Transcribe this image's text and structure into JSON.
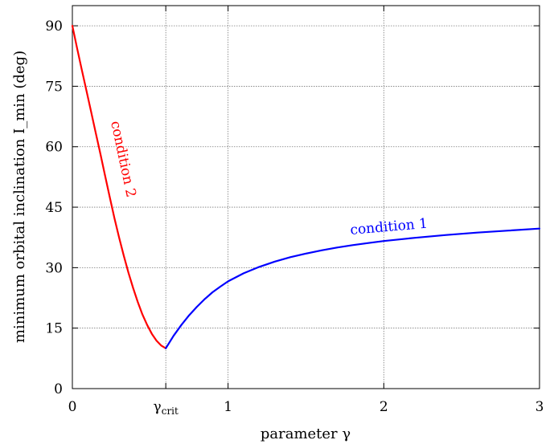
{
  "chart_data": {
    "type": "line",
    "xlabel": "parameter γ",
    "ylabel": "minimum orbital inclination I_min (deg)",
    "xlim": [
      0,
      3
    ],
    "ylim": [
      0,
      95
    ],
    "grid": true,
    "x_ticks": [
      {
        "value": 0,
        "label": "0"
      },
      {
        "value": 0.6,
        "label": "γcrit"
      },
      {
        "value": 1,
        "label": "1"
      },
      {
        "value": 2,
        "label": "2"
      },
      {
        "value": 3,
        "label": "3"
      }
    ],
    "y_ticks": [
      0,
      15,
      30,
      45,
      60,
      75,
      90
    ],
    "series": [
      {
        "name": "condition 2",
        "color": "#ff0000",
        "points": [
          [
            0.0,
            90.0
          ],
          [
            0.03,
            84.5
          ],
          [
            0.06,
            79.2
          ],
          [
            0.09,
            74.0
          ],
          [
            0.12,
            68.8
          ],
          [
            0.15,
            63.5
          ],
          [
            0.18,
            58.2
          ],
          [
            0.21,
            52.8
          ],
          [
            0.24,
            47.5
          ],
          [
            0.27,
            42.3
          ],
          [
            0.3,
            37.5
          ],
          [
            0.33,
            33.0
          ],
          [
            0.36,
            28.8
          ],
          [
            0.39,
            25.0
          ],
          [
            0.42,
            21.5
          ],
          [
            0.45,
            18.4
          ],
          [
            0.48,
            15.8
          ],
          [
            0.51,
            13.6
          ],
          [
            0.54,
            11.9
          ],
          [
            0.57,
            10.7
          ],
          [
            0.6,
            10.0
          ]
        ]
      },
      {
        "name": "condition 1",
        "color": "#0000ff",
        "points": [
          [
            0.6,
            10.0
          ],
          [
            0.65,
            13.1
          ],
          [
            0.7,
            15.8
          ],
          [
            0.75,
            18.2
          ],
          [
            0.8,
            20.3
          ],
          [
            0.85,
            22.2
          ],
          [
            0.9,
            23.9
          ],
          [
            0.95,
            25.3
          ],
          [
            1.0,
            26.6
          ],
          [
            1.1,
            28.6
          ],
          [
            1.2,
            30.2
          ],
          [
            1.3,
            31.5
          ],
          [
            1.4,
            32.6
          ],
          [
            1.5,
            33.5
          ],
          [
            1.6,
            34.3
          ],
          [
            1.7,
            35.0
          ],
          [
            1.8,
            35.6
          ],
          [
            1.9,
            36.1
          ],
          [
            2.0,
            36.6
          ],
          [
            2.2,
            37.4
          ],
          [
            2.4,
            38.1
          ],
          [
            2.6,
            38.7
          ],
          [
            2.8,
            39.2
          ],
          [
            3.0,
            39.7
          ]
        ]
      }
    ]
  },
  "colors": {
    "condition_2": "#ff0000",
    "condition_1": "#0000ff",
    "grid": "#7a7a7a",
    "axis": "#000000"
  }
}
